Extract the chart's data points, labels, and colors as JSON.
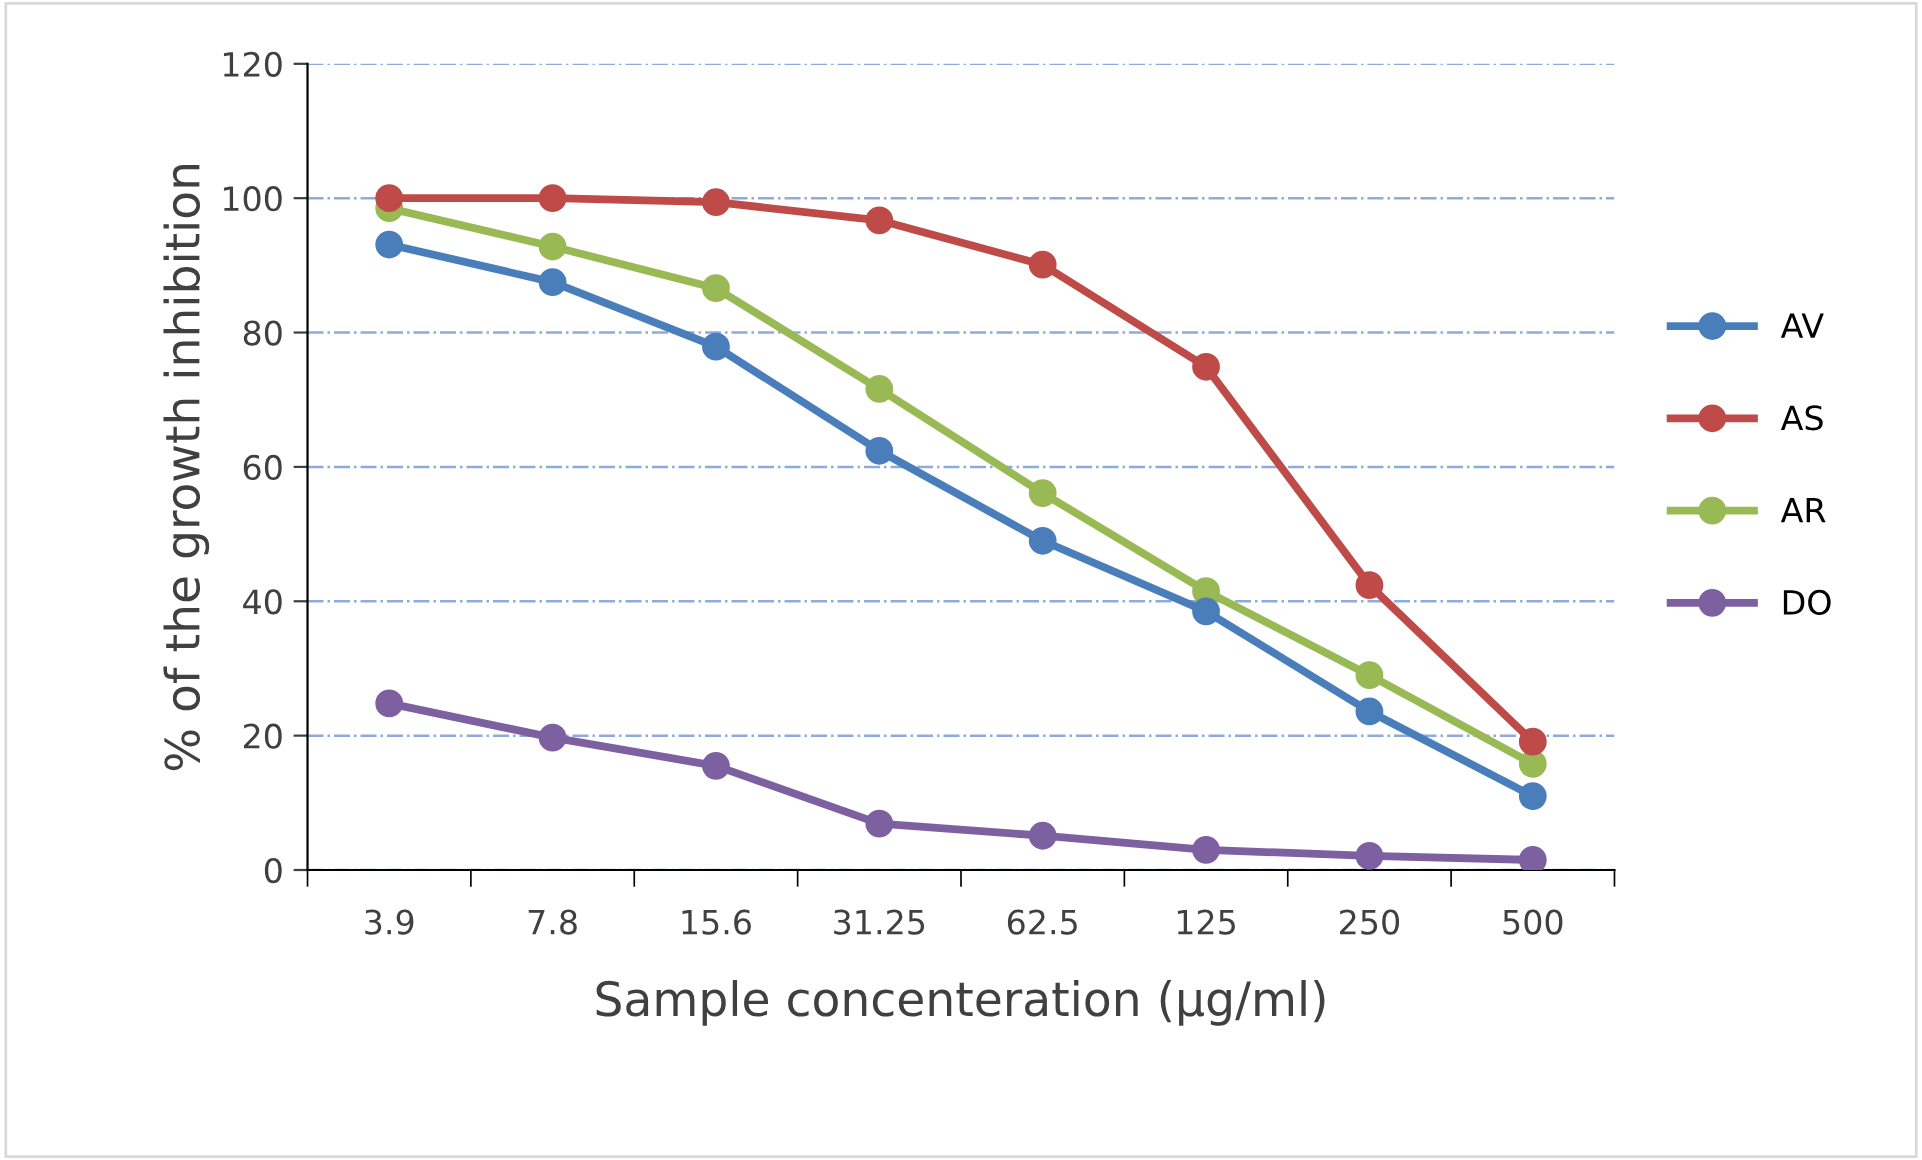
{
  "chart_data": {
    "type": "line",
    "xlabel": "Sample concenteration (µg/ml)",
    "ylabel": "% of the growth inhibition",
    "categories": [
      "3.9",
      "7.8",
      "15.6",
      "31.25",
      "62.5",
      "125",
      "250",
      "500"
    ],
    "series": [
      {
        "name": "AV",
        "color": "#4a7ebb",
        "values": [
          93.1,
          87.5,
          77.9,
          62.4,
          49,
          38.5,
          23.6,
          11
        ]
      },
      {
        "name": "AS",
        "color": "#be4b48",
        "values": [
          100,
          100,
          99.4,
          96.7,
          90.1,
          74.9,
          42.4,
          19.1
        ]
      },
      {
        "name": "AR",
        "color": "#98b954",
        "values": [
          98.5,
          92.8,
          86.6,
          71.6,
          56.1,
          41.5,
          29,
          15.8
        ]
      },
      {
        "name": "DO",
        "color": "#7d60a0",
        "values": [
          24.8,
          19.7,
          15.5,
          6.9,
          5.1,
          3,
          2.1,
          1.5
        ]
      }
    ],
    "ylim": [
      0,
      120
    ],
    "yticks": [
      0,
      20,
      40,
      60,
      80,
      100,
      120
    ],
    "grid": "y",
    "legend": "right",
    "marker": "circle",
    "line_style": "solid"
  }
}
